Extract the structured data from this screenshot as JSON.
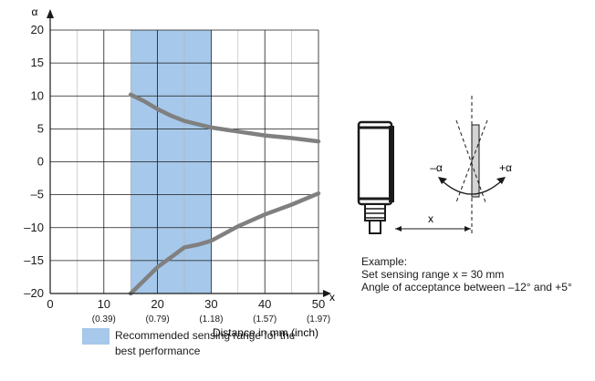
{
  "chart_data": {
    "type": "line",
    "x_axis_symbol": "x",
    "y_axis_symbol": "α",
    "xlabel": "Distance in mm (inch)",
    "xlim": [
      0,
      50
    ],
    "ylim": [
      -20,
      20
    ],
    "x_ticks": [
      {
        "value": 0,
        "label": "0",
        "sublabel": ""
      },
      {
        "value": 10,
        "label": "10",
        "sublabel": "(0.39)"
      },
      {
        "value": 20,
        "label": "20",
        "sublabel": "(0.79)"
      },
      {
        "value": 30,
        "label": "30",
        "sublabel": "(1.18)"
      },
      {
        "value": 40,
        "label": "40",
        "sublabel": "(1.57)"
      },
      {
        "value": 50,
        "label": "50",
        "sublabel": "(1.97)"
      }
    ],
    "y_ticks": [
      {
        "value": 20,
        "label": "20"
      },
      {
        "value": 15,
        "label": "15"
      },
      {
        "value": 10,
        "label": "10"
      },
      {
        "value": 5,
        "label": "5"
      },
      {
        "value": 0,
        "label": "0"
      },
      {
        "value": -5,
        "label": "–5"
      },
      {
        "value": -10,
        "label": "–10"
      },
      {
        "value": -15,
        "label": "–15"
      },
      {
        "value": -20,
        "label": "–20"
      }
    ],
    "grid": true,
    "highlight_band": {
      "x_start": 15,
      "x_end": 30,
      "color": "#a6c8ea"
    },
    "series": [
      {
        "x": [
          15,
          17.5,
          20,
          22.5,
          25,
          30,
          35,
          40,
          45,
          50
        ],
        "y": [
          10.2,
          9.2,
          8,
          7,
          6.2,
          5.2,
          4.6,
          4,
          3.6,
          3.1
        ]
      },
      {
        "x": [
          15,
          17.5,
          20,
          22.5,
          25,
          27.5,
          30,
          35,
          40,
          45,
          50
        ],
        "y": [
          -20,
          -18,
          -16,
          -14.5,
          -13,
          -12.6,
          -12,
          -9.8,
          -8,
          -6.5,
          -4.8
        ]
      }
    ],
    "line_color": "#808080"
  },
  "legend": {
    "text": "Recommended sensing range for the best performance"
  },
  "diagram": {
    "minus_alpha": "–α",
    "plus_alpha": "+α",
    "distance_label": "x"
  },
  "example": {
    "line1": "Example:",
    "line2": "Set sensing range x = 30 mm",
    "line3": "Angle of acceptance between –12° and +5°"
  }
}
